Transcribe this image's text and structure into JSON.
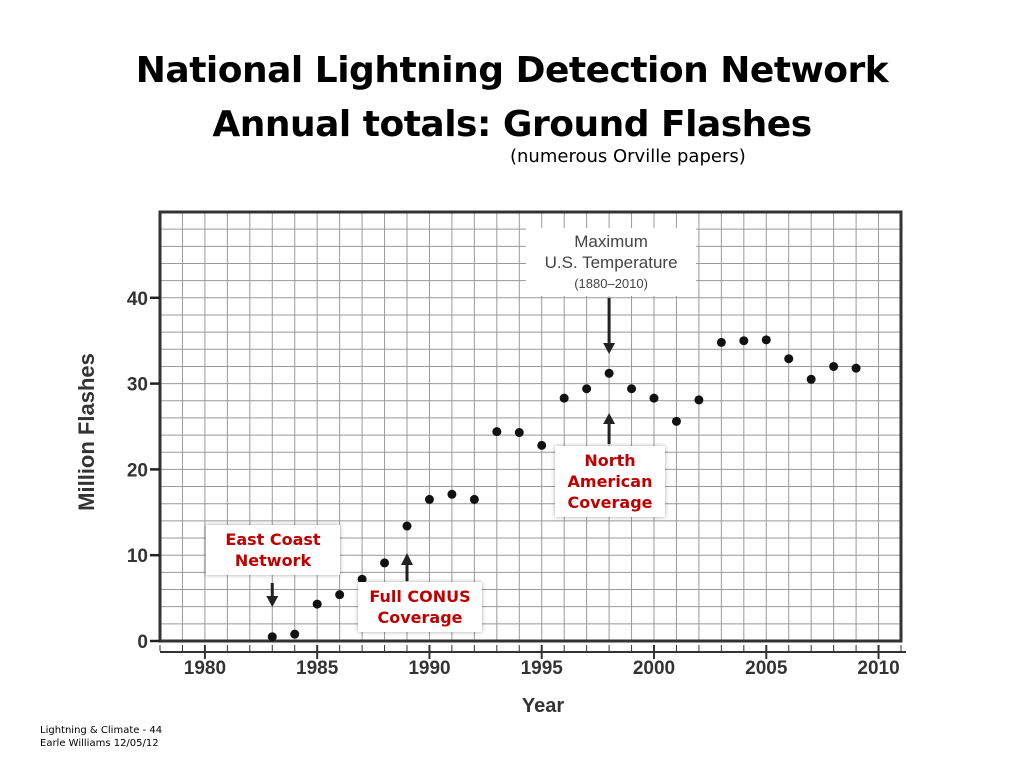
{
  "slide": {
    "title_line1": "National Lightning Detection Network",
    "title_line2": "Annual totals: Ground Flashes",
    "subtitle": "(numerous Orville papers)",
    "footer_line1": "Lightning & Climate - 44",
    "footer_line2": "Earle Williams 12/05/12"
  },
  "callouts": {
    "east_coast": [
      "East Coast",
      "Network"
    ],
    "full_conus": [
      "Full CONUS",
      "Coverage"
    ],
    "north_american": [
      "North",
      "American",
      "Coverage"
    ]
  },
  "colors": {
    "callout_text": "#c00000",
    "grid": "#999999",
    "points": "#111111"
  },
  "chart_data": {
    "type": "scatter",
    "xlabel": "Year",
    "ylabel": "Million Flashes",
    "xlim": [
      1978,
      2011
    ],
    "ylim": [
      0,
      50
    ],
    "x_ticks": [
      1980,
      1985,
      1990,
      1995,
      2000,
      2005,
      2010
    ],
    "y_ticks": [
      0,
      10,
      20,
      30,
      40
    ],
    "grid": true,
    "annotation": {
      "lines": [
        "Maximum",
        "U.S. Temperature",
        "(1880–2010)"
      ],
      "year": 1998
    },
    "series": [
      {
        "x": [
          1983,
          1984,
          1985,
          1986,
          1987,
          1988,
          1989,
          1990,
          1991,
          1992,
          1993,
          1994,
          1995,
          1996,
          1997,
          1998,
          1999,
          2000,
          2001,
          2002,
          2003,
          2004,
          2005,
          2006,
          2007,
          2008,
          2009
        ],
        "y": [
          0.5,
          0.8,
          4.3,
          5.4,
          7.2,
          9.1,
          13.4,
          16.5,
          17.1,
          16.5,
          24.4,
          24.3,
          22.8,
          28.3,
          29.4,
          31.2,
          29.4,
          28.3,
          25.6,
          28.1,
          34.8,
          35.0,
          35.1,
          32.9,
          30.5,
          32.0,
          31.8
        ]
      }
    ]
  }
}
